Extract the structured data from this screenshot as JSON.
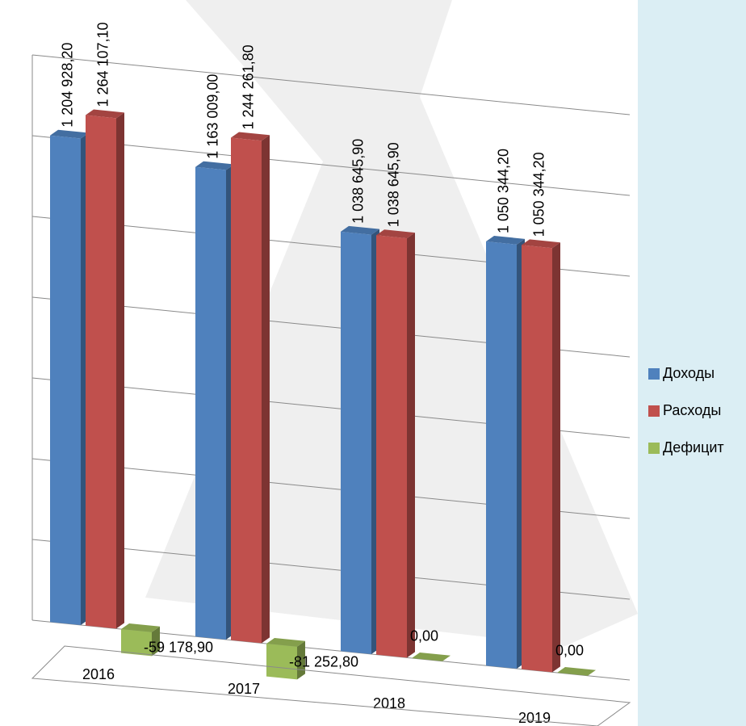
{
  "chart_data": {
    "type": "bar3d",
    "categories": [
      "2016",
      "2017",
      "2018",
      "2019"
    ],
    "series": [
      {
        "name": "Доходы",
        "color": "#4f81bd",
        "values": [
          1204928.2,
          1163009.0,
          1038645.9,
          1050344.2
        ],
        "value_labels": [
          "1 204 928,20",
          "1 163 009,00",
          "1 038 645,90",
          "1 050 344,20"
        ]
      },
      {
        "name": "Расходы",
        "color": "#c0504d",
        "values": [
          1264107.1,
          1244261.8,
          1038645.9,
          1050344.2
        ],
        "value_labels": [
          "1 264 107,10",
          "1 244 261,80",
          "1 038 645,90",
          "1 050 344,20"
        ]
      },
      {
        "name": "Дефицит",
        "color": "#9bbb59",
        "values": [
          -59178.9,
          -81252.8,
          0,
          0
        ],
        "value_labels": [
          "-59 178,90",
          "-81 252,80",
          "0,00",
          "0,00"
        ]
      }
    ],
    "ylim": [
      0,
      1400000
    ],
    "yticks": [
      0,
      200000,
      400000,
      600000,
      800000,
      1000000,
      1200000,
      1400000
    ],
    "grid": true,
    "legend": "right"
  }
}
